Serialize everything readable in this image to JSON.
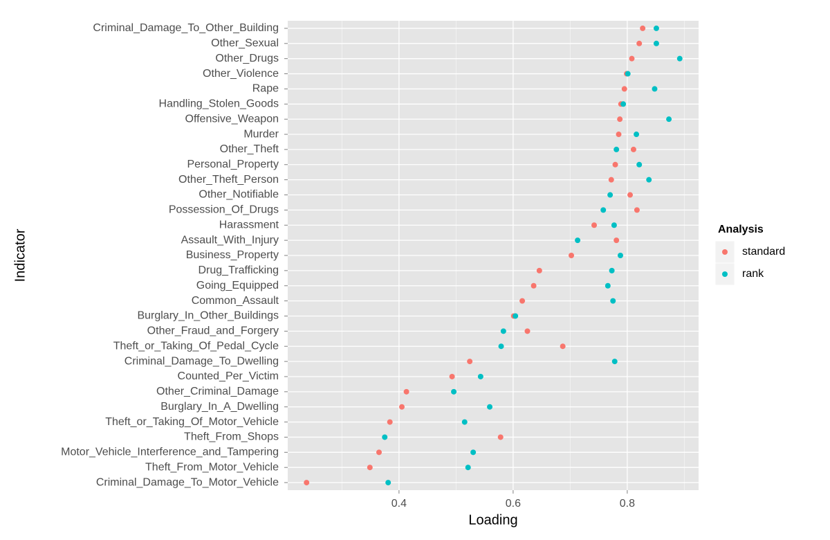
{
  "chart_data": {
    "type": "dotplot",
    "x_label": "Loading",
    "y_label": "Indicator",
    "legend_title": "Analysis",
    "legend_position": "right",
    "categories": [
      "Criminal_Damage_To_Other_Building",
      "Other_Sexual",
      "Other_Drugs",
      "Other_Violence",
      "Rape",
      "Handling_Stolen_Goods",
      "Offensive_Weapon",
      "Murder",
      "Other_Theft",
      "Personal_Property",
      "Other_Theft_Person",
      "Other_Notifiable",
      "Possession_Of_Drugs",
      "Harassment",
      "Assault_With_Injury",
      "Business_Property",
      "Drug_Trafficking",
      "Going_Equipped",
      "Common_Assault",
      "Burglary_In_Other_Buildings",
      "Other_Fraud_and_Forgery",
      "Theft_or_Taking_Of_Pedal_Cycle",
      "Criminal_Damage_To_Dwelling",
      "Counted_Per_Victim",
      "Other_Criminal_Damage",
      "Burglary_In_A_Dwelling",
      "Theft_or_Taking_Of_Motor_Vehicle",
      "Theft_From_Shops",
      "Motor_Vehicle_Interference_and_Tampering",
      "Theft_From_Motor_Vehicle",
      "Criminal_Damage_To_Motor_Vehicle"
    ],
    "series": [
      {
        "name": "standard",
        "color": "#f8766d",
        "values": [
          0.827,
          0.821,
          0.808,
          0.799,
          0.795,
          0.789,
          0.787,
          0.785,
          0.811,
          0.779,
          0.772,
          0.805,
          0.817,
          0.742,
          0.781,
          0.702,
          0.646,
          0.636,
          0.616,
          0.601,
          0.625,
          0.687,
          0.524,
          0.493,
          0.413,
          0.405,
          0.384,
          0.578,
          0.365,
          0.349,
          0.238
        ]
      },
      {
        "name": "rank",
        "color": "#00bfc4",
        "values": [
          0.851,
          0.851,
          0.892,
          0.801,
          0.848,
          0.793,
          0.873,
          0.816,
          0.781,
          0.821,
          0.838,
          0.77,
          0.758,
          0.777,
          0.713,
          0.788,
          0.773,
          0.766,
          0.775,
          0.604,
          0.583,
          0.579,
          0.778,
          0.543,
          0.496,
          0.559,
          0.515,
          0.375,
          0.53,
          0.521,
          0.381
        ]
      }
    ],
    "xlim": [
      0.205,
      0.925
    ],
    "xticks": [
      0.4,
      0.6,
      0.8
    ],
    "grid": true
  }
}
